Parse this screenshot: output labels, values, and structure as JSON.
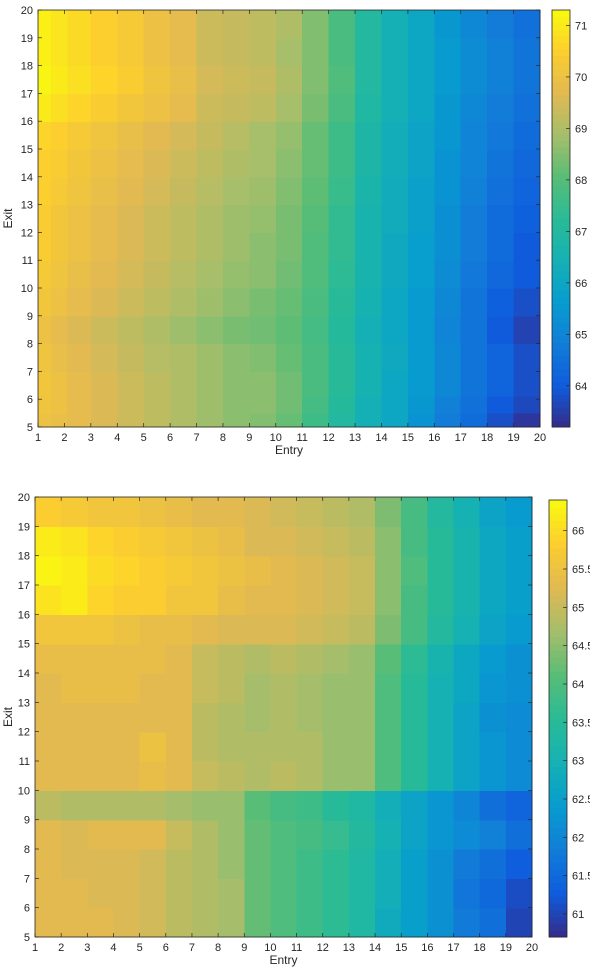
{
  "chart_data": [
    {
      "type": "heatmap",
      "title": "",
      "xlabel": "Entry",
      "ylabel": "Exit",
      "x_ticks": [
        1,
        2,
        3,
        4,
        5,
        6,
        7,
        8,
        9,
        10,
        11,
        12,
        13,
        14,
        15,
        16,
        17,
        18,
        19,
        20
      ],
      "y_ticks": [
        5,
        6,
        7,
        8,
        9,
        10,
        11,
        12,
        13,
        14,
        15,
        16,
        17,
        18,
        19,
        20
      ],
      "xlim": [
        1,
        20
      ],
      "ylim": [
        5,
        20
      ],
      "x_centers": [
        1.25,
        1.75,
        2.5,
        3.5,
        4.5,
        5.5,
        6.5,
        7.5,
        8.5,
        9.5,
        10.5,
        11.5,
        12.5,
        13.5,
        14.5,
        15.5,
        16.5,
        17.5,
        18.5,
        19.5
      ],
      "y_centers": [
        5.25,
        5.75,
        6.5,
        7.5,
        8.5,
        9.5,
        10.5,
        11.5,
        12.5,
        13.5,
        14.5,
        15.5,
        16.5,
        17.5,
        18.5,
        19.5
      ],
      "values": [
        [
          70.0,
          69.9,
          69.8,
          69.6,
          69.4,
          69.2,
          69.0,
          68.8,
          68.6,
          68.5,
          68.2,
          67.6,
          67.0,
          66.4,
          66.0,
          65.4,
          64.8,
          64.4,
          63.8,
          63.4
        ],
        [
          70.1,
          70.0,
          69.8,
          69.6,
          69.4,
          69.2,
          69.0,
          68.8,
          68.6,
          68.6,
          68.3,
          67.7,
          67.1,
          66.4,
          66.0,
          65.5,
          64.9,
          64.5,
          64.0,
          63.7
        ],
        [
          70.2,
          70.0,
          69.8,
          69.6,
          69.4,
          69.2,
          69.0,
          68.8,
          68.6,
          68.6,
          68.3,
          67.8,
          67.2,
          66.5,
          66.0,
          65.6,
          65.1,
          64.6,
          64.2,
          63.8
        ],
        [
          70.1,
          69.9,
          69.7,
          69.5,
          69.3,
          69.1,
          69.0,
          68.8,
          68.6,
          68.5,
          68.2,
          67.8,
          67.2,
          66.5,
          66.1,
          65.6,
          65.1,
          64.6,
          64.2,
          63.8
        ],
        [
          70.0,
          69.8,
          69.6,
          69.4,
          69.2,
          69.0,
          68.8,
          68.6,
          68.4,
          68.3,
          68.1,
          67.7,
          67.1,
          66.4,
          66.0,
          65.6,
          65.0,
          64.6,
          64.0,
          63.6
        ],
        [
          70.2,
          70.0,
          69.8,
          69.6,
          69.4,
          69.2,
          69.0,
          68.8,
          68.6,
          68.4,
          68.2,
          67.8,
          67.2,
          66.5,
          66.0,
          65.6,
          65.1,
          64.6,
          64.1,
          63.8
        ],
        [
          70.3,
          70.1,
          69.9,
          69.7,
          69.5,
          69.3,
          69.1,
          68.9,
          68.7,
          68.6,
          68.3,
          67.9,
          67.3,
          66.6,
          66.1,
          65.7,
          65.2,
          64.7,
          64.3,
          64.0
        ],
        [
          70.4,
          70.2,
          70.0,
          69.8,
          69.6,
          69.4,
          69.2,
          69.0,
          68.8,
          68.6,
          68.4,
          67.9,
          67.4,
          66.6,
          66.1,
          65.7,
          65.3,
          64.8,
          64.4,
          64.0
        ],
        [
          70.4,
          70.2,
          70.0,
          69.8,
          69.6,
          69.4,
          69.2,
          69.0,
          68.8,
          68.7,
          68.4,
          68.0,
          67.4,
          66.6,
          66.2,
          65.8,
          65.3,
          64.8,
          64.4,
          64.1
        ],
        [
          70.5,
          70.3,
          70.1,
          69.9,
          69.7,
          69.5,
          69.3,
          69.1,
          68.9,
          68.8,
          68.5,
          68.1,
          67.5,
          66.7,
          66.2,
          65.8,
          65.4,
          64.9,
          64.5,
          64.2
        ],
        [
          70.5,
          70.4,
          70.2,
          70.0,
          69.8,
          69.6,
          69.4,
          69.2,
          69.0,
          68.9,
          68.6,
          68.2,
          67.6,
          66.8,
          66.3,
          65.9,
          65.4,
          65.0,
          64.6,
          64.3
        ],
        [
          70.6,
          70.5,
          70.3,
          70.1,
          69.9,
          69.7,
          69.5,
          69.3,
          69.1,
          68.9,
          68.7,
          68.2,
          67.6,
          66.8,
          66.3,
          65.9,
          65.5,
          65.0,
          64.7,
          64.4
        ],
        [
          71.0,
          70.8,
          70.6,
          70.4,
          70.2,
          70.0,
          69.8,
          69.4,
          69.3,
          69.2,
          68.9,
          68.4,
          67.8,
          66.9,
          66.4,
          66.0,
          65.5,
          65.1,
          64.8,
          64.5
        ],
        [
          71.2,
          71.0,
          70.8,
          70.6,
          70.4,
          70.1,
          69.9,
          69.5,
          69.4,
          69.3,
          69.0,
          68.5,
          67.9,
          67.0,
          66.4,
          66.0,
          65.6,
          65.2,
          64.9,
          64.6
        ],
        [
          71.1,
          70.9,
          70.7,
          70.5,
          70.3,
          70.0,
          69.8,
          69.4,
          69.3,
          69.2,
          68.9,
          68.5,
          67.8,
          67.0,
          66.4,
          66.0,
          65.6,
          65.2,
          64.9,
          64.6
        ],
        [
          71.1,
          70.9,
          70.7,
          70.5,
          70.3,
          70.0,
          69.8,
          69.4,
          69.3,
          69.2,
          69.0,
          68.5,
          67.8,
          67.0,
          66.4,
          66.0,
          65.5,
          65.1,
          64.8,
          64.5
        ]
      ],
      "clim": [
        63.2,
        71.3
      ],
      "colorbar_ticks": [
        64,
        65,
        66,
        67,
        68,
        69,
        70,
        71
      ],
      "colormap": "parula",
      "grid": false
    },
    {
      "type": "heatmap",
      "title": "",
      "xlabel": "Entry",
      "ylabel": "Exit",
      "x_ticks": [
        1,
        2,
        3,
        4,
        5,
        6,
        7,
        8,
        9,
        10,
        11,
        12,
        13,
        14,
        15,
        16,
        17,
        18,
        19,
        20
      ],
      "y_ticks": [
        5,
        6,
        7,
        8,
        9,
        10,
        11,
        12,
        13,
        14,
        15,
        16,
        17,
        18,
        19,
        20
      ],
      "xlim": [
        1,
        20
      ],
      "ylim": [
        5,
        20
      ],
      "x_centers": [
        1.5,
        2.5,
        3.5,
        4.5,
        5.5,
        6.5,
        7.5,
        8.5,
        9.5,
        10.5,
        11.5,
        12.5,
        13.5,
        14.5,
        15.5,
        16.5,
        17.5,
        18.5,
        19.5
      ],
      "y_centers": [
        5.5,
        6.5,
        7.5,
        8.5,
        9.5,
        10.5,
        11.5,
        12.5,
        13.5,
        14.5,
        15.5,
        16.5,
        17.5,
        18.5,
        19.5
      ],
      "values": [
        [
          65.3,
          65.3,
          65.3,
          65.2,
          65.1,
          64.9,
          64.8,
          64.7,
          64.2,
          64.0,
          63.8,
          63.6,
          63.3,
          62.8,
          62.5,
          62.2,
          61.8,
          61.6,
          61.0
        ],
        [
          65.3,
          65.3,
          65.2,
          65.2,
          65.1,
          64.9,
          64.8,
          64.7,
          64.2,
          64.0,
          63.8,
          63.6,
          63.3,
          62.9,
          62.5,
          62.2,
          61.7,
          61.5,
          61.1
        ],
        [
          65.3,
          65.2,
          65.2,
          65.2,
          65.1,
          64.9,
          64.8,
          64.6,
          64.2,
          64.0,
          63.8,
          63.6,
          63.3,
          62.9,
          62.5,
          62.2,
          61.8,
          61.6,
          61.3
        ],
        [
          65.3,
          65.2,
          65.3,
          65.3,
          65.3,
          65.0,
          64.8,
          64.6,
          64.2,
          64.0,
          63.9,
          63.7,
          63.4,
          63.0,
          62.6,
          62.3,
          62.1,
          61.9,
          61.6
        ],
        [
          64.9,
          64.8,
          64.8,
          64.8,
          64.8,
          64.7,
          64.6,
          64.6,
          64.1,
          63.9,
          63.8,
          63.5,
          63.3,
          62.9,
          62.6,
          62.3,
          62.0,
          61.6,
          61.4
        ],
        [
          65.3,
          65.3,
          65.3,
          65.3,
          65.4,
          65.3,
          65.0,
          64.9,
          64.8,
          64.9,
          64.8,
          64.6,
          64.6,
          64.0,
          63.5,
          63.0,
          62.6,
          62.3,
          62.1
        ],
        [
          65.3,
          65.3,
          65.3,
          65.3,
          65.5,
          65.3,
          64.9,
          64.8,
          64.8,
          64.8,
          64.8,
          64.6,
          64.6,
          64.0,
          63.5,
          63.0,
          62.6,
          62.3,
          62.1
        ],
        [
          65.3,
          65.3,
          65.3,
          65.3,
          65.3,
          65.3,
          64.9,
          64.8,
          64.7,
          64.8,
          64.7,
          64.6,
          64.6,
          64.0,
          63.5,
          63.0,
          62.6,
          62.2,
          62.1
        ],
        [
          65.3,
          65.4,
          65.4,
          65.4,
          65.3,
          65.3,
          65.0,
          64.9,
          64.7,
          64.8,
          64.7,
          64.6,
          64.6,
          64.0,
          63.5,
          63.0,
          62.7,
          62.3,
          62.2
        ],
        [
          65.4,
          65.4,
          65.4,
          65.4,
          65.4,
          65.3,
          65.0,
          64.9,
          64.8,
          64.9,
          64.8,
          64.7,
          64.6,
          64.1,
          63.6,
          63.1,
          62.7,
          62.4,
          62.2
        ],
        [
          65.6,
          65.6,
          65.6,
          65.5,
          65.4,
          65.4,
          65.3,
          65.2,
          65.2,
          65.2,
          65.1,
          65.0,
          64.9,
          64.4,
          63.9,
          63.4,
          63.0,
          62.6,
          62.4
        ],
        [
          66.1,
          66.2,
          65.9,
          65.8,
          65.8,
          65.6,
          65.6,
          65.4,
          65.3,
          65.3,
          65.2,
          65.1,
          65.0,
          64.5,
          63.9,
          63.5,
          63.1,
          62.7,
          62.5
        ],
        [
          66.3,
          66.2,
          66.0,
          65.9,
          65.8,
          65.7,
          65.6,
          65.5,
          65.4,
          65.3,
          65.2,
          65.1,
          65.0,
          64.5,
          64.0,
          63.5,
          63.1,
          62.7,
          62.5
        ],
        [
          66.2,
          66.1,
          65.9,
          65.8,
          65.7,
          65.6,
          65.5,
          65.4,
          65.2,
          65.2,
          65.1,
          65.0,
          64.9,
          64.5,
          63.9,
          63.5,
          63.1,
          62.7,
          62.5
        ],
        [
          65.8,
          65.7,
          65.6,
          65.6,
          65.5,
          65.4,
          65.3,
          65.3,
          65.2,
          65.1,
          65.0,
          64.9,
          64.8,
          64.4,
          63.9,
          63.4,
          63.0,
          62.6,
          62.4
        ]
      ],
      "clim": [
        60.7,
        66.4
      ],
      "colorbar_ticks": [
        61,
        61.5,
        62,
        62.5,
        63,
        63.5,
        64,
        64.5,
        65,
        65.5,
        66
      ],
      "colormap": "parula",
      "grid": false
    }
  ]
}
